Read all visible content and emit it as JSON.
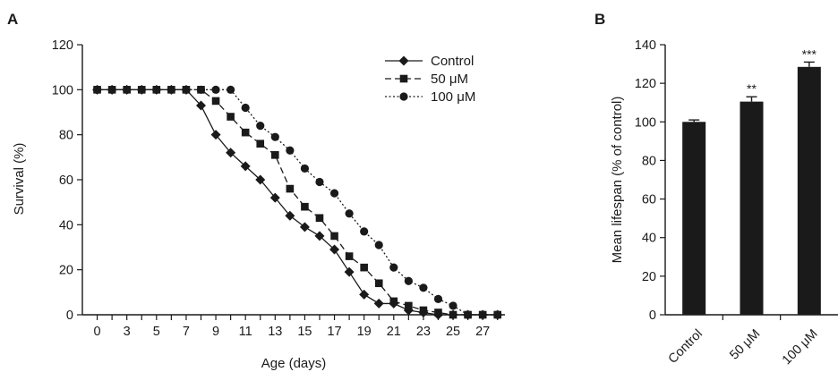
{
  "chart_data": [
    {
      "panel_label": "A",
      "type": "line",
      "xlabel": "Age (days)",
      "ylabel": "Survival (%)",
      "xlim": [
        -1,
        27.5
      ],
      "ylim": [
        0,
        120
      ],
      "xticks": [
        0,
        1,
        2,
        3,
        4,
        5,
        6,
        7,
        8,
        9,
        10,
        11,
        12,
        13,
        14,
        15,
        16,
        17,
        18,
        19,
        20,
        21,
        22,
        23,
        24,
        25,
        26,
        27
      ],
      "xticklabels": [
        "0",
        "",
        "3",
        "",
        "5",
        "",
        "7",
        "",
        "9",
        "",
        "11",
        "",
        "13",
        "",
        "15",
        "",
        "17",
        "",
        "19",
        "",
        "21",
        "",
        "23",
        "",
        "25",
        "",
        "27",
        ""
      ],
      "yticks": [
        0,
        20,
        40,
        60,
        80,
        100,
        120
      ],
      "yticklabels": [
        "0",
        "20",
        "40",
        "60",
        "80",
        "100",
        "120"
      ],
      "legend_position": "top-right",
      "series": [
        {
          "name": "Control",
          "marker": "diamond",
          "line_style": "solid",
          "x": [
            0,
            1,
            2,
            3,
            4,
            5,
            6,
            7,
            8,
            9,
            10,
            11,
            12,
            13,
            14,
            15,
            16,
            17,
            18,
            19,
            20,
            21,
            22,
            23,
            24,
            25,
            26,
            27
          ],
          "y": [
            100,
            100,
            100,
            100,
            100,
            100,
            100,
            93,
            80,
            72,
            66,
            60,
            52,
            44,
            39,
            35,
            29,
            19,
            9,
            5,
            5,
            2,
            1,
            0,
            0,
            0,
            0,
            0
          ]
        },
        {
          "name": "50 μM",
          "marker": "square",
          "line_style": "dashed",
          "x": [
            0,
            1,
            2,
            3,
            4,
            5,
            6,
            7,
            8,
            9,
            10,
            11,
            12,
            13,
            14,
            15,
            16,
            17,
            18,
            19,
            20,
            21,
            22,
            23,
            24,
            25,
            26,
            27
          ],
          "y": [
            100,
            100,
            100,
            100,
            100,
            100,
            100,
            100,
            95,
            88,
            81,
            76,
            71,
            56,
            48,
            43,
            35,
            26,
            21,
            14,
            6,
            4,
            2,
            1,
            0,
            0,
            0,
            0
          ]
        },
        {
          "name": "100 μM",
          "marker": "circle",
          "line_style": "dotted",
          "x": [
            0,
            1,
            2,
            3,
            4,
            5,
            6,
            7,
            8,
            9,
            10,
            11,
            12,
            13,
            14,
            15,
            16,
            17,
            18,
            19,
            20,
            21,
            22,
            23,
            24,
            25,
            26,
            27
          ],
          "y": [
            100,
            100,
            100,
            100,
            100,
            100,
            100,
            100,
            100,
            100,
            92,
            84,
            79,
            73,
            65,
            59,
            54,
            45,
            37,
            31,
            21,
            15,
            12,
            7,
            4,
            0,
            0,
            0
          ]
        }
      ]
    },
    {
      "panel_label": "B",
      "type": "bar",
      "ylabel": "Mean lifespan (% of control)",
      "ylim": [
        0,
        140
      ],
      "yticks": [
        0,
        20,
        40,
        60,
        80,
        100,
        120,
        140
      ],
      "yticklabels": [
        "0",
        "20",
        "40",
        "60",
        "80",
        "100",
        "120",
        "140"
      ],
      "categories": [
        "Control",
        "50 μM",
        "100 μM"
      ],
      "values": [
        100,
        110.5,
        128.5
      ],
      "errors": [
        1,
        2.5,
        2.5
      ],
      "significance": [
        "",
        "**",
        "***"
      ],
      "bar_color": "#1a1a1a"
    }
  ]
}
